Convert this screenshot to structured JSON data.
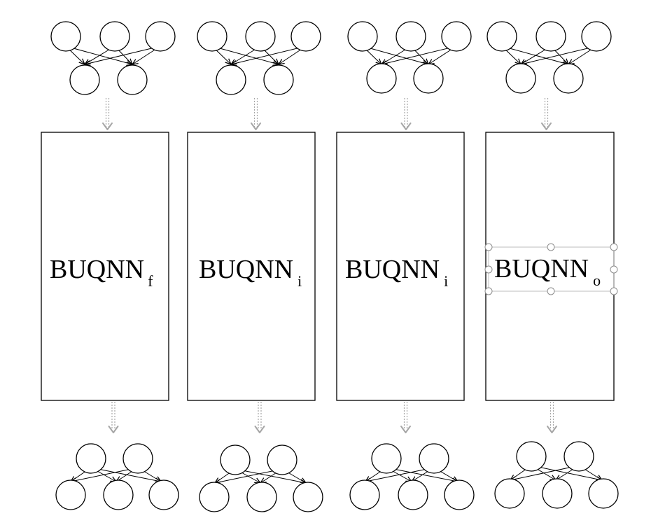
{
  "colors": {
    "stroke": "#000000",
    "flow_arrow": "#a6a6a6",
    "selection_frame": "#bdbdbd",
    "selection_handle": "#8c8c8c"
  },
  "columns": [
    {
      "base": "BUQNN",
      "sub": "f",
      "selected": false
    },
    {
      "base": "BUQNN",
      "sub": "i",
      "selected": false
    },
    {
      "base": "BUQNN",
      "sub": "i",
      "selected": false
    },
    {
      "base": "BUQNN",
      "sub": "o",
      "selected": true
    }
  ]
}
